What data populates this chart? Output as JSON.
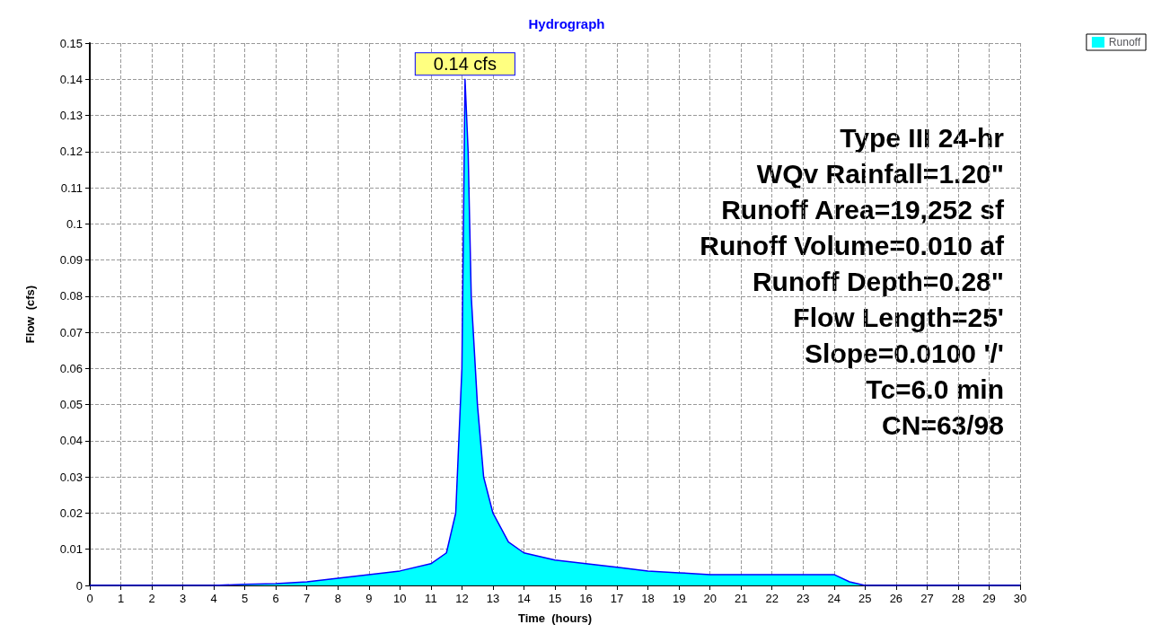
{
  "chart_data": {
    "type": "area",
    "title": "Hydrograph",
    "xlabel": "Time  (hours)",
    "ylabel": "Flow  (cfs)",
    "x": [
      0,
      1,
      2,
      3,
      4,
      5,
      6,
      7,
      8,
      9,
      10,
      11,
      11.5,
      11.8,
      12,
      12.1,
      12.2,
      12.3,
      12.5,
      12.7,
      13,
      13.5,
      14,
      15,
      16,
      17,
      18,
      19,
      20,
      21,
      22,
      23,
      24,
      24.5,
      25,
      30
    ],
    "series": [
      {
        "name": "Runoff",
        "color": "#00ffff",
        "values": [
          0,
          0,
          0,
          0,
          0,
          0.0003,
          0.0005,
          0.001,
          0.002,
          0.003,
          0.004,
          0.006,
          0.009,
          0.02,
          0.06,
          0.14,
          0.12,
          0.08,
          0.05,
          0.03,
          0.02,
          0.012,
          0.009,
          0.007,
          0.006,
          0.005,
          0.004,
          0.0035,
          0.003,
          0.003,
          0.003,
          0.003,
          0.003,
          0.001,
          0,
          0
        ]
      }
    ],
    "xlim": [
      0,
      30
    ],
    "xticks": [
      0,
      1,
      2,
      3,
      4,
      5,
      6,
      7,
      8,
      9,
      10,
      11,
      12,
      13,
      14,
      15,
      16,
      17,
      18,
      19,
      20,
      21,
      22,
      23,
      24,
      25,
      26,
      27,
      28,
      29,
      30
    ],
    "ylim": [
      0,
      0.15
    ],
    "yticks": [
      0,
      0.01,
      0.02,
      0.03,
      0.04,
      0.05,
      0.06,
      0.07,
      0.08,
      0.09,
      0.1,
      0.11,
      0.12,
      0.13,
      0.14,
      0.15
    ],
    "grid": true,
    "legend": "top right",
    "annotations": [
      {
        "text": "0.14 cfs",
        "x": 12.1,
        "y": 0.14
      },
      "Type III 24-hr",
      "WQv Rainfall=1.20\"",
      "Runoff Area=19,252 sf",
      "Runoff Volume=0.010 af",
      "Runoff Depth=0.28\"",
      "Flow Length=25'",
      "Slope=0.0100 '/'",
      "Tc=6.0 min",
      "CN=63/98"
    ]
  }
}
